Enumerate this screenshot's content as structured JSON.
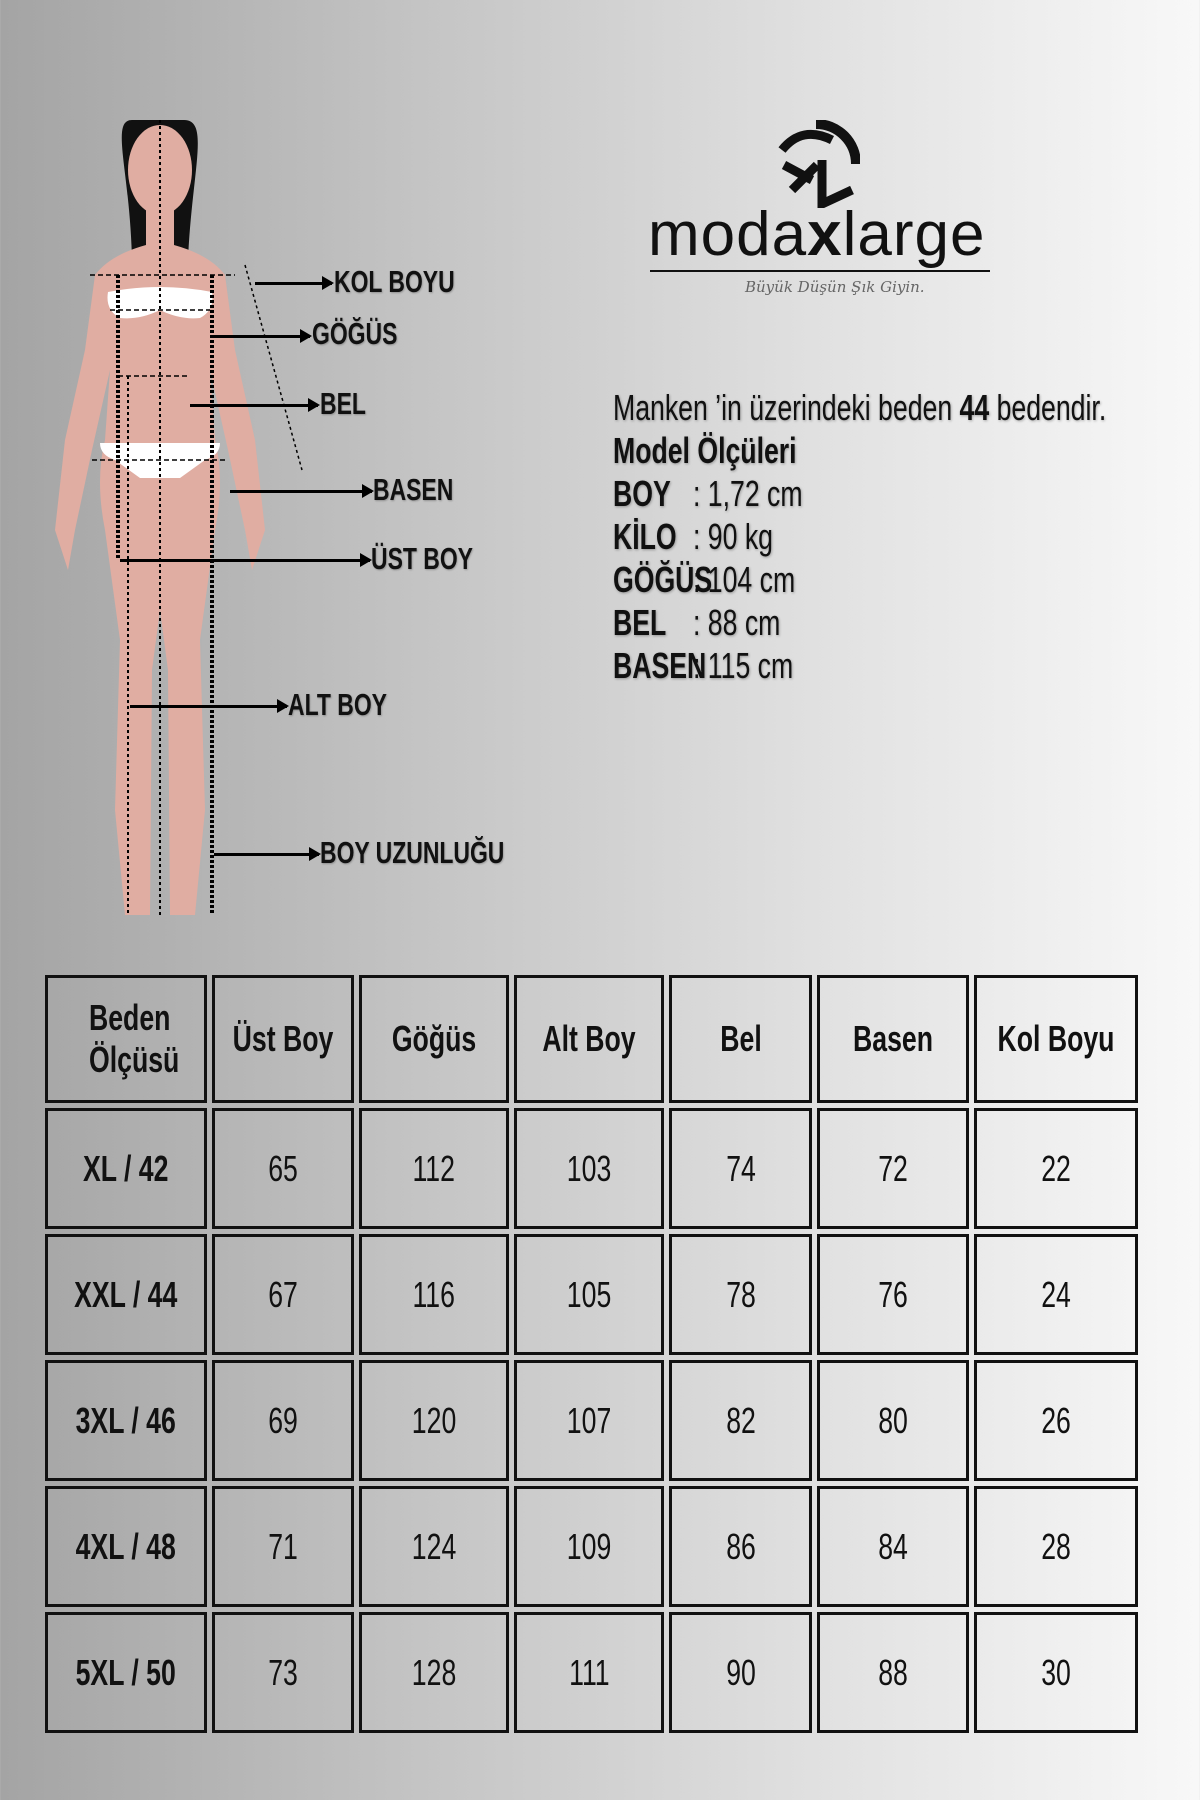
{
  "brand": {
    "name_prefix": "moda",
    "name_x": "x",
    "name_suffix": "large",
    "tagline": "Büyük Düşün Şık Giyin.",
    "logo_icon": "mxl-monogram"
  },
  "figure": {
    "labels": {
      "kol_boyu": "KOL BOYU",
      "gogus": "GÖĞÜS",
      "bel": "BEL",
      "basen": "BASEN",
      "ust_boy": "ÜST BOY",
      "alt_boy": "ALT BOY",
      "boy_uzunlugu": "BOY UZUNLUĞU"
    },
    "skin_color": "#e0ada2"
  },
  "info": {
    "line1_pre": "Manken ’in üzerindeki beden",
    "line1_size": "44",
    "line1_post": "bedendir.",
    "title": "Model Ölçüleri",
    "rows": [
      {
        "key": "BOY",
        "val": ": 1,72 cm"
      },
      {
        "key": "KİLO",
        "val": ": 90 kg"
      },
      {
        "key": "GÖĞÜS",
        "val": ": 104 cm"
      },
      {
        "key": "BEL",
        "val": ": 88 cm"
      },
      {
        "key": "BASEN",
        "val": ": 115 cm"
      }
    ]
  },
  "table": {
    "headers": [
      "Beden Ölçüsü",
      "Üst Boy",
      "Göğüs",
      "Alt Boy",
      "Bel",
      "Basen",
      "Kol Boyu"
    ],
    "rows": [
      [
        "XL / 42",
        "65",
        "112",
        "103",
        "74",
        "72",
        "22"
      ],
      [
        "XXL / 44",
        "67",
        "116",
        "105",
        "78",
        "76",
        "24"
      ],
      [
        "3XL / 46",
        "69",
        "120",
        "107",
        "82",
        "80",
        "26"
      ],
      [
        "4XL / 48",
        "71",
        "124",
        "109",
        "86",
        "84",
        "28"
      ],
      [
        "5XL / 50",
        "73",
        "128",
        "111",
        "90",
        "88",
        "30"
      ]
    ]
  }
}
